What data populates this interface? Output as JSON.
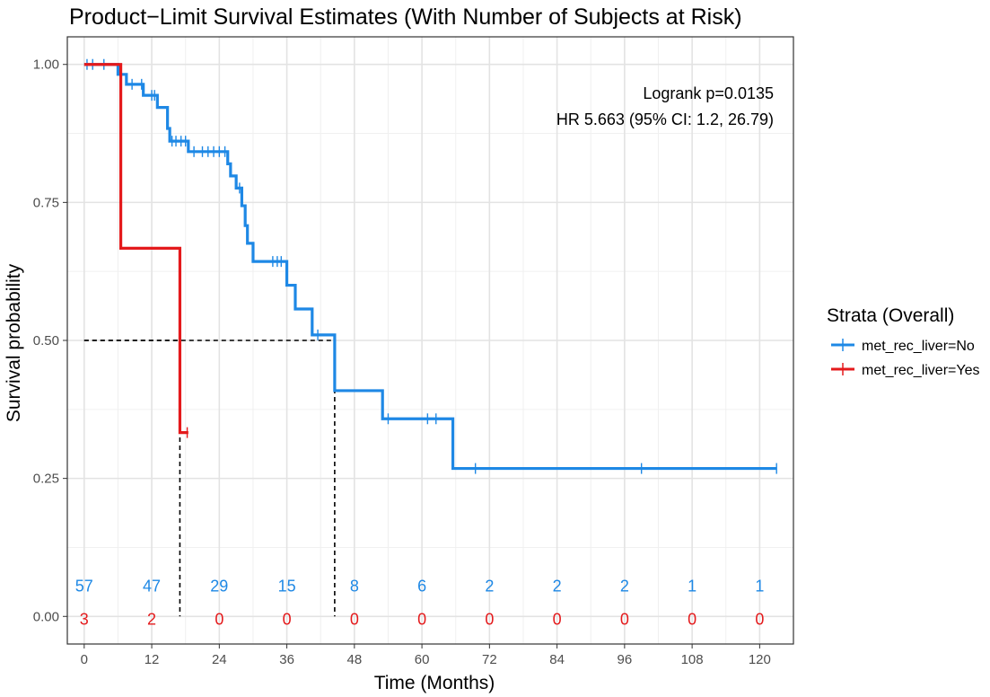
{
  "chart_data": {
    "type": "line",
    "title": "Product−Limit Survival Estimates (With Number of Subjects at Risk)",
    "xlabel": "Time (Months)",
    "ylabel": "Survival probability",
    "xlim": [
      -3,
      126
    ],
    "ylim": [
      -0.05,
      1.05
    ],
    "x_ticks": [
      0,
      12,
      24,
      36,
      48,
      60,
      72,
      84,
      96,
      108,
      120
    ],
    "x_tick_labels": [
      "0",
      "12",
      "24",
      "36",
      "48",
      "60",
      "72",
      "84",
      "96",
      "108",
      "120"
    ],
    "y_ticks": [
      0,
      0.25,
      0.5,
      0.75,
      1
    ],
    "y_tick_labels": [
      "0.00",
      "0.25",
      "0.50",
      "0.75",
      "1.00"
    ],
    "grid": true,
    "legend": {
      "title": "Strata (Overall)",
      "placement": "right",
      "entries": [
        "met_rec_liver=No",
        "met_rec_liver=Yes"
      ]
    },
    "annotations": [
      "Logrank p=0.0135",
      "HR 5.663 (95% CI: 1.2, 26.79)"
    ],
    "series": [
      {
        "name": "met_rec_liver=No",
        "color": "#1e88e5",
        "steps": [
          [
            0,
            1.0
          ],
          [
            6,
            0.982
          ],
          [
            7.5,
            0.964
          ],
          [
            10.5,
            0.944
          ],
          [
            13,
            0.922
          ],
          [
            14.8,
            0.884
          ],
          [
            15.2,
            0.861
          ],
          [
            18.5,
            0.842
          ],
          [
            25.5,
            0.82
          ],
          [
            26,
            0.798
          ],
          [
            27,
            0.776
          ],
          [
            28,
            0.744
          ],
          [
            28.6,
            0.708
          ],
          [
            29,
            0.676
          ],
          [
            30,
            0.643
          ],
          [
            36,
            0.6
          ],
          [
            37.5,
            0.557
          ],
          [
            40.5,
            0.51
          ],
          [
            44.5,
            0.409
          ],
          [
            53,
            0.358
          ],
          [
            65.5,
            0.268
          ],
          [
            123,
            0.268
          ]
        ],
        "censors": [
          [
            0.5,
            1.0
          ],
          [
            1.5,
            1.0
          ],
          [
            3.5,
            1.0
          ],
          [
            6.5,
            0.982
          ],
          [
            8.5,
            0.964
          ],
          [
            10.2,
            0.964
          ],
          [
            12,
            0.944
          ],
          [
            12.5,
            0.944
          ],
          [
            15.6,
            0.861
          ],
          [
            16.3,
            0.861
          ],
          [
            17.2,
            0.861
          ],
          [
            18,
            0.861
          ],
          [
            19.5,
            0.842
          ],
          [
            21,
            0.842
          ],
          [
            22,
            0.842
          ],
          [
            23,
            0.842
          ],
          [
            24,
            0.842
          ],
          [
            25,
            0.842
          ],
          [
            27.6,
            0.776
          ],
          [
            33.5,
            0.643
          ],
          [
            34.3,
            0.643
          ],
          [
            35,
            0.643
          ],
          [
            41.5,
            0.51
          ],
          [
            54,
            0.358
          ],
          [
            61,
            0.358
          ],
          [
            62.5,
            0.358
          ],
          [
            69.5,
            0.268
          ],
          [
            99,
            0.268
          ],
          [
            123,
            0.268
          ]
        ]
      },
      {
        "name": "met_rec_liver=Yes",
        "color": "#e41a1c",
        "steps": [
          [
            0,
            1.0
          ],
          [
            6.5,
            0.667
          ],
          [
            17,
            0.333
          ],
          [
            18.5,
            0.333
          ]
        ],
        "censors": [
          [
            18.3,
            0.333
          ]
        ]
      }
    ],
    "median_lines": [
      {
        "x": 17,
        "y": 0.5
      },
      {
        "x": 44.5,
        "y": 0.5
      }
    ],
    "risk_table": {
      "times": [
        0,
        12,
        24,
        36,
        48,
        60,
        72,
        84,
        96,
        108,
        120
      ],
      "no": [
        "57",
        "47",
        "29",
        "15",
        "8",
        "6",
        "2",
        "2",
        "2",
        "1",
        "1"
      ],
      "yes": [
        "3",
        "2",
        "0",
        "0",
        "0",
        "0",
        "0",
        "0",
        "0",
        "0",
        "0"
      ],
      "no_y": 0.055,
      "yes_y": -0.005
    }
  }
}
